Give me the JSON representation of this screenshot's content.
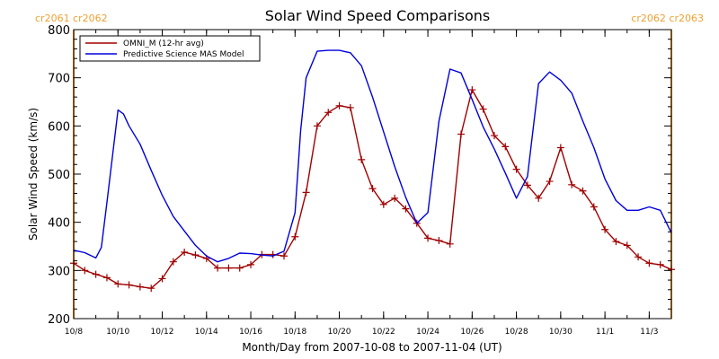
{
  "chart_data": {
    "type": "line",
    "title": "Solar Wind Speed Comparisons",
    "xlabel": "Month/Day from 2007-10-08 to 2007-11-04 (UT)",
    "ylabel": "Solar Wind Speed (km/s)",
    "xlim": [
      "2007-10-08",
      "2007-11-04"
    ],
    "ylim": [
      200,
      800
    ],
    "y_ticks": [
      200,
      300,
      400,
      500,
      600,
      700,
      800
    ],
    "x_ticks": [
      {
        "date": "2007-10-08",
        "label": "10/8"
      },
      {
        "date": "2007-10-10",
        "label": "10/10"
      },
      {
        "date": "2007-10-12",
        "label": "10/12"
      },
      {
        "date": "2007-10-14",
        "label": "10/14"
      },
      {
        "date": "2007-10-16",
        "label": "10/16"
      },
      {
        "date": "2007-10-18",
        "label": "10/18"
      },
      {
        "date": "2007-10-20",
        "label": "10/20"
      },
      {
        "date": "2007-10-22",
        "label": "10/22"
      },
      {
        "date": "2007-10-24",
        "label": "10/24"
      },
      {
        "date": "2007-10-26",
        "label": "10/26"
      },
      {
        "date": "2007-10-28",
        "label": "10/28"
      },
      {
        "date": "2007-10-30",
        "label": "10/30"
      },
      {
        "date": "2007-11-01",
        "label": "11/1"
      },
      {
        "date": "2007-11-03",
        "label": "11/3"
      }
    ],
    "carrington_markers": [
      {
        "label": "cr2061 cr2062",
        "date": "2007-10-08"
      },
      {
        "label": "cr2062 cr2063",
        "date": "2007-11-04"
      }
    ],
    "legend_position": "top-left",
    "series": [
      {
        "name": "OMNI_M (12-hr avg)",
        "color": "#a00000",
        "marker": "plus",
        "x": [
          "2007-10-08 00:00",
          "2007-10-08 12:00",
          "2007-10-09 00:00",
          "2007-10-09 12:00",
          "2007-10-10 00:00",
          "2007-10-10 12:00",
          "2007-10-11 00:00",
          "2007-10-11 12:00",
          "2007-10-12 00:00",
          "2007-10-12 12:00",
          "2007-10-13 00:00",
          "2007-10-13 12:00",
          "2007-10-14 00:00",
          "2007-10-14 12:00",
          "2007-10-15 00:00",
          "2007-10-15 12:00",
          "2007-10-16 00:00",
          "2007-10-16 12:00",
          "2007-10-17 00:00",
          "2007-10-17 12:00",
          "2007-10-18 00:00",
          "2007-10-18 12:00",
          "2007-10-19 00:00",
          "2007-10-19 12:00",
          "2007-10-20 00:00",
          "2007-10-20 12:00",
          "2007-10-21 00:00",
          "2007-10-21 12:00",
          "2007-10-22 00:00",
          "2007-10-22 12:00",
          "2007-10-23 00:00",
          "2007-10-23 12:00",
          "2007-10-24 00:00",
          "2007-10-24 12:00",
          "2007-10-25 00:00",
          "2007-10-25 12:00",
          "2007-10-26 00:00",
          "2007-10-26 12:00",
          "2007-10-27 00:00",
          "2007-10-27 12:00",
          "2007-10-28 00:00",
          "2007-10-28 12:00",
          "2007-10-29 00:00",
          "2007-10-29 12:00",
          "2007-10-30 00:00",
          "2007-10-30 12:00",
          "2007-10-31 00:00",
          "2007-10-31 12:00",
          "2007-11-01 00:00",
          "2007-11-01 12:00",
          "2007-11-02 00:00",
          "2007-11-02 12:00",
          "2007-11-03 00:00",
          "2007-11-03 12:00",
          "2007-11-04 00:00"
        ],
        "values": [
          315,
          300,
          292,
          285,
          272,
          270,
          266,
          263,
          283,
          318,
          338,
          332,
          325,
          305,
          305,
          305,
          312,
          333,
          333,
          330,
          370,
          462,
          600,
          628,
          642,
          638,
          530,
          470,
          437,
          450,
          428,
          398,
          367,
          362,
          355,
          583,
          675,
          635,
          580,
          557,
          510,
          477,
          450,
          485,
          555,
          478,
          465,
          432,
          385,
          360,
          352,
          328,
          315,
          312,
          302
        ]
      },
      {
        "name": "Predictive Science MAS Model",
        "color": "#0000dd",
        "marker": "none",
        "x": [
          "2007-10-08 00:00",
          "2007-10-08 12:00",
          "2007-10-09 00:00",
          "2007-10-09 06:00",
          "2007-10-09 12:00",
          "2007-10-10 00:00",
          "2007-10-10 06:00",
          "2007-10-10 12:00",
          "2007-10-11 00:00",
          "2007-10-11 12:00",
          "2007-10-12 00:00",
          "2007-10-12 12:00",
          "2007-10-13 00:00",
          "2007-10-13 12:00",
          "2007-10-14 00:00",
          "2007-10-14 12:00",
          "2007-10-15 00:00",
          "2007-10-15 12:00",
          "2007-10-16 00:00",
          "2007-10-16 12:00",
          "2007-10-17 00:00",
          "2007-10-17 12:00",
          "2007-10-18 00:00",
          "2007-10-18 06:00",
          "2007-10-18 12:00",
          "2007-10-19 00:00",
          "2007-10-19 12:00",
          "2007-10-20 00:00",
          "2007-10-20 12:00",
          "2007-10-21 00:00",
          "2007-10-21 12:00",
          "2007-10-22 00:00",
          "2007-10-22 12:00",
          "2007-10-23 00:00",
          "2007-10-23 12:00",
          "2007-10-24 00:00",
          "2007-10-24 12:00",
          "2007-10-25 00:00",
          "2007-10-25 12:00",
          "2007-10-26 00:00",
          "2007-10-26 12:00",
          "2007-10-27 00:00",
          "2007-10-27 12:00",
          "2007-10-28 00:00",
          "2007-10-28 12:00",
          "2007-10-29 00:00",
          "2007-10-29 12:00",
          "2007-10-30 00:00",
          "2007-10-30 12:00",
          "2007-10-31 00:00",
          "2007-10-31 12:00",
          "2007-11-01 00:00",
          "2007-11-01 12:00",
          "2007-11-02 00:00",
          "2007-11-02 12:00",
          "2007-11-03 00:00",
          "2007-11-03 12:00",
          "2007-11-04 00:00"
        ],
        "values": [
          342,
          337,
          326,
          348,
          440,
          633,
          625,
          600,
          562,
          508,
          456,
          412,
          382,
          352,
          330,
          318,
          325,
          336,
          335,
          332,
          330,
          340,
          420,
          590,
          700,
          755,
          757,
          757,
          752,
          725,
          660,
          588,
          516,
          452,
          398,
          420,
          610,
          718,
          710,
          655,
          598,
          552,
          502,
          450,
          495,
          688,
          712,
          695,
          668,
          610,
          555,
          490,
          445,
          425,
          425,
          432,
          425,
          378
        ]
      }
    ]
  }
}
